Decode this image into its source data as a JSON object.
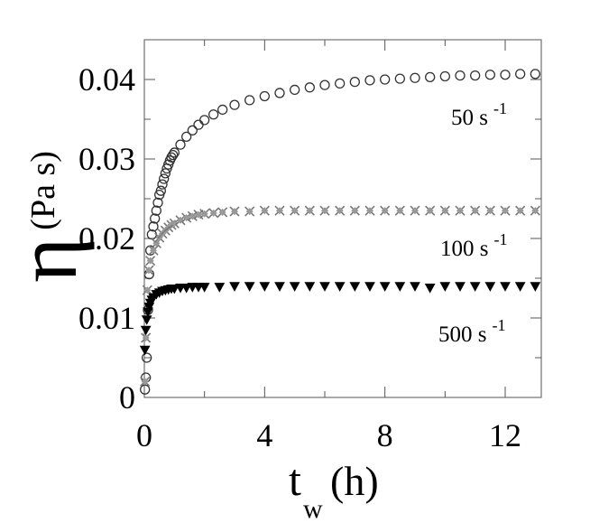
{
  "chart_data": {
    "type": "scatter",
    "title": "",
    "xlabel": {
      "symbol": "t",
      "subscript": "w",
      "unit": "(h)"
    },
    "ylabel": {
      "symbol": "η",
      "unit": "(Pa s)"
    },
    "xlim": [
      0,
      13.2
    ],
    "ylim": [
      0,
      0.045
    ],
    "xticks": [
      0,
      4,
      8,
      12
    ],
    "xtick_labels": [
      "0",
      "4",
      "8",
      "12"
    ],
    "yticks": [
      0,
      0.01,
      0.02,
      0.03,
      0.04
    ],
    "ytick_labels": [
      "0",
      "0.01",
      "0.02",
      "0.03",
      "0.04"
    ],
    "grid": false,
    "series": [
      {
        "name": "50 s -1",
        "label_text": "50 s",
        "label_exp": "-1",
        "marker": "circle-open",
        "x": [
          0.02,
          0.05,
          0.08,
          0.12,
          0.16,
          0.2,
          0.25,
          0.3,
          0.35,
          0.4,
          0.45,
          0.5,
          0.55,
          0.6,
          0.65,
          0.7,
          0.75,
          0.8,
          0.85,
          0.9,
          0.95,
          1.0,
          1.2,
          1.4,
          1.6,
          1.8,
          2.0,
          2.3,
          2.6,
          3.0,
          3.5,
          4.0,
          4.5,
          5.0,
          5.5,
          6.0,
          6.5,
          7.0,
          7.5,
          8.0,
          8.5,
          9.0,
          9.5,
          10.0,
          10.5,
          11.0,
          11.5,
          12.0,
          12.5,
          13.0
        ],
        "y": [
          0.001,
          0.0025,
          0.005,
          0.011,
          0.0155,
          0.0185,
          0.0205,
          0.0215,
          0.0225,
          0.0235,
          0.0245,
          0.0255,
          0.026,
          0.0268,
          0.0275,
          0.0282,
          0.0288,
          0.0293,
          0.0298,
          0.0302,
          0.0305,
          0.0308,
          0.0318,
          0.0328,
          0.0336,
          0.0343,
          0.0349,
          0.0356,
          0.0362,
          0.0368,
          0.0374,
          0.0379,
          0.0383,
          0.0387,
          0.039,
          0.0393,
          0.0395,
          0.0397,
          0.0399,
          0.04,
          0.0401,
          0.0402,
          0.0403,
          0.0404,
          0.0405,
          0.0405,
          0.0406,
          0.0406,
          0.0407,
          0.0407
        ]
      },
      {
        "name": "100 s -1",
        "label_text": "100 s",
        "label_exp": "-1",
        "marker": "mixed-gray",
        "x": [
          0.02,
          0.05,
          0.1,
          0.15,
          0.2,
          0.3,
          0.4,
          0.5,
          0.6,
          0.7,
          0.8,
          0.9,
          1.0,
          1.2,
          1.4,
          1.6,
          1.8,
          2.0,
          2.3,
          2.6,
          3.0,
          3.5,
          4.0,
          4.5,
          5.0,
          5.5,
          6.0,
          6.5,
          7.0,
          7.5,
          8.0,
          8.5,
          9.0,
          9.5,
          10.0,
          10.5,
          11.0,
          11.5,
          12.0,
          12.5,
          13.0
        ],
        "y": [
          0.002,
          0.0075,
          0.0135,
          0.016,
          0.0172,
          0.0185,
          0.0194,
          0.0201,
          0.0206,
          0.021,
          0.0214,
          0.0217,
          0.0219,
          0.0223,
          0.0226,
          0.0228,
          0.023,
          0.0231,
          0.0232,
          0.0233,
          0.0234,
          0.0234,
          0.0235,
          0.0235,
          0.0235,
          0.0235,
          0.0235,
          0.0235,
          0.0235,
          0.0235,
          0.0235,
          0.0235,
          0.0235,
          0.0235,
          0.0235,
          0.0235,
          0.0235,
          0.0235,
          0.0235,
          0.0235,
          0.0235
        ]
      },
      {
        "name": "500 s -1",
        "label_text": "500 s",
        "label_exp": "-1",
        "marker": "triangle-down-filled",
        "x": [
          0.02,
          0.05,
          0.08,
          0.12,
          0.16,
          0.2,
          0.25,
          0.3,
          0.4,
          0.5,
          0.6,
          0.7,
          0.8,
          0.9,
          1.0,
          1.2,
          1.4,
          1.6,
          1.8,
          2.0,
          2.5,
          3.0,
          3.5,
          4.0,
          4.5,
          5.0,
          5.5,
          6.0,
          6.5,
          7.0,
          7.5,
          8.0,
          8.5,
          9.0,
          9.5,
          10.0,
          10.5,
          11.0,
          11.5,
          12.0,
          12.5,
          13.0
        ],
        "y": [
          0.006,
          0.0085,
          0.0098,
          0.0108,
          0.0114,
          0.0119,
          0.0123,
          0.0126,
          0.013,
          0.0132,
          0.0134,
          0.0135,
          0.0136,
          0.0137,
          0.0137,
          0.0138,
          0.0138,
          0.0139,
          0.0139,
          0.0139,
          0.0139,
          0.014,
          0.014,
          0.014,
          0.014,
          0.014,
          0.014,
          0.014,
          0.014,
          0.014,
          0.014,
          0.014,
          0.014,
          0.014,
          0.0138,
          0.014,
          0.014,
          0.014,
          0.014,
          0.014,
          0.014,
          0.014
        ]
      }
    ]
  }
}
